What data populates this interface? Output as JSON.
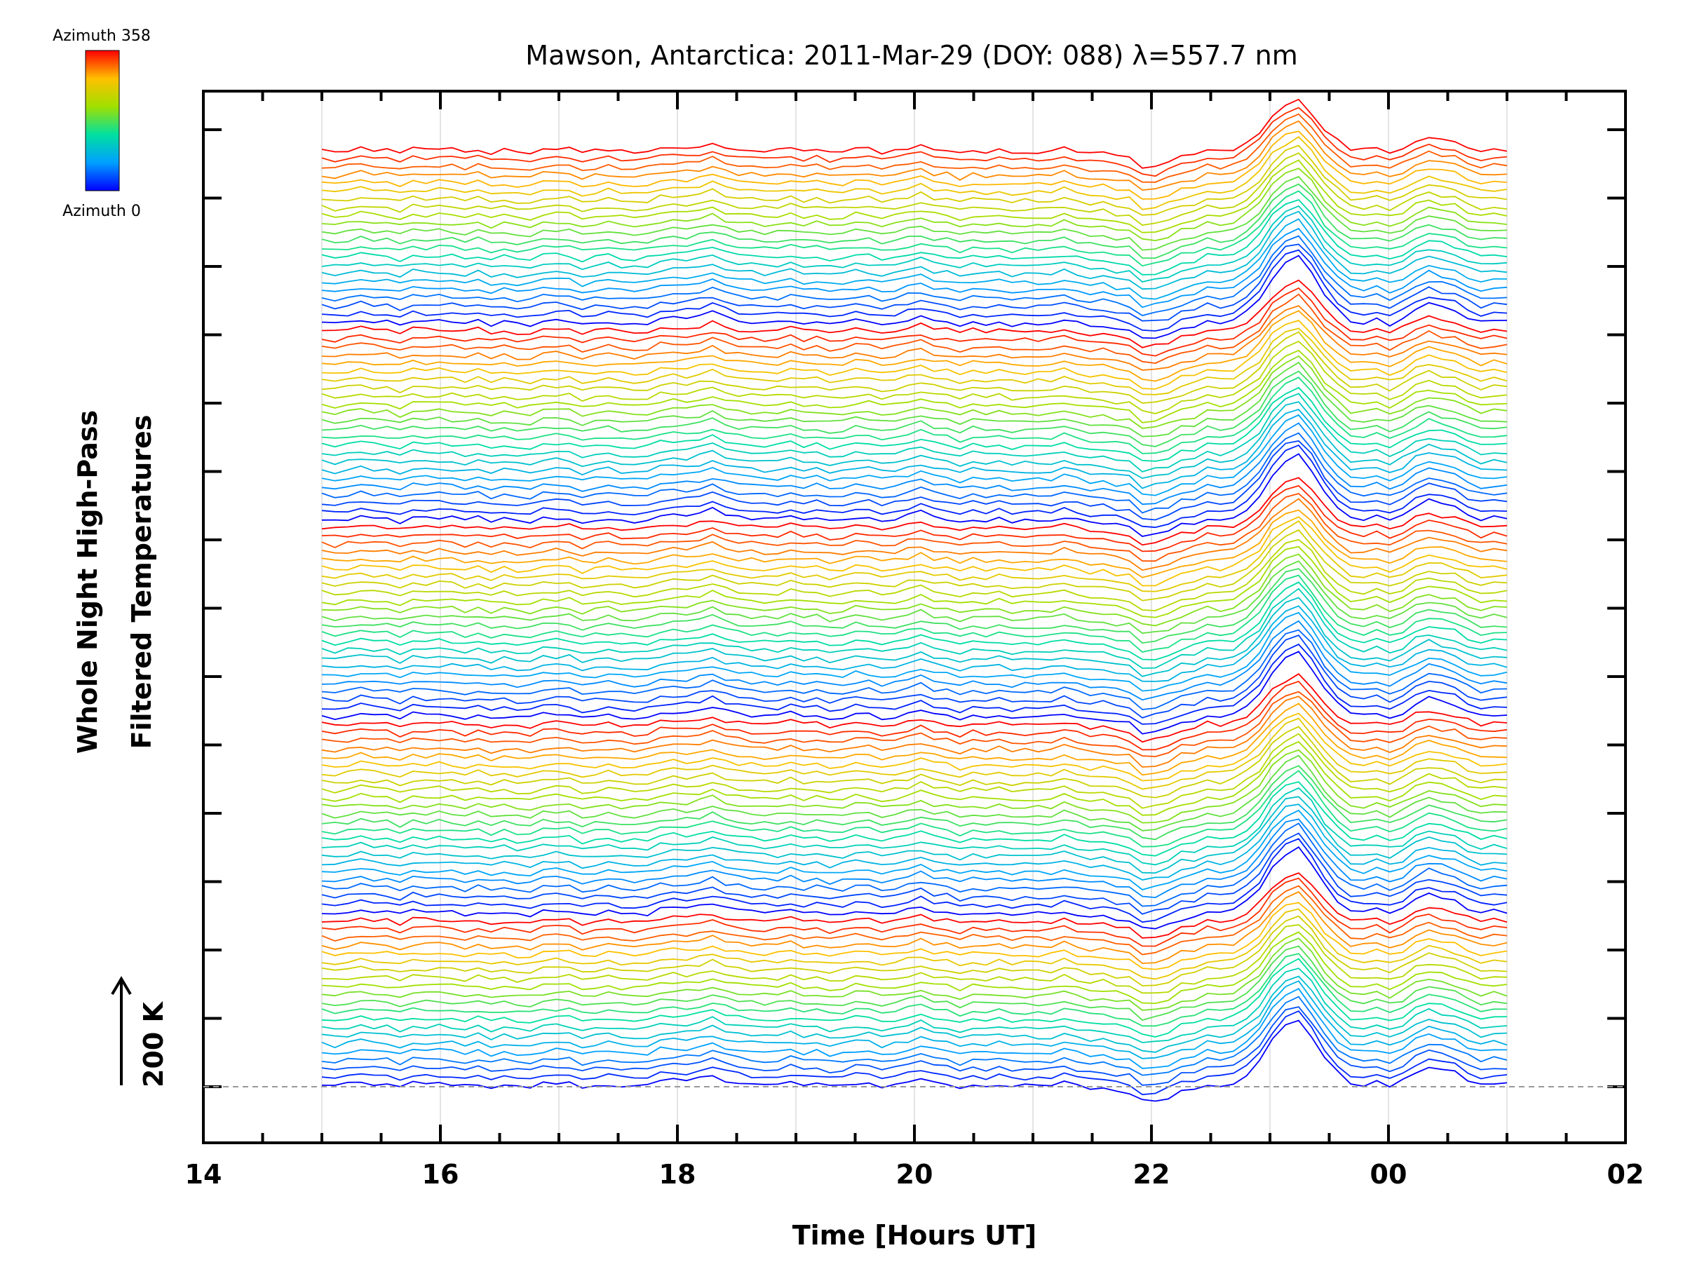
{
  "chart_data": {
    "type": "line",
    "title": "Mawson, Antarctica: 2011-Mar-29 (DOY: 088) λ=557.7 nm",
    "xlabel": "Time [Hours UT]",
    "ylabel_line1": "Whole Night High-Pass",
    "ylabel_line2": "Filtered Temperatures",
    "scale_label": "200 K",
    "x_ticks": [
      "14",
      "16",
      "18",
      "20",
      "22",
      "00",
      "02"
    ],
    "x_tick_hours": [
      14,
      16,
      18,
      20,
      22,
      24,
      26
    ],
    "xlim_hours": [
      14,
      26
    ],
    "data_range_hours": [
      15.0,
      25.0
    ],
    "colorbar": {
      "top_label": "Azimuth 358",
      "bottom_label": "Azimuth 0",
      "azimuth_range": [
        0,
        358
      ],
      "colors": [
        "#0000ff",
        "#00a0ff",
        "#00e0a0",
        "#a0e000",
        "#ffc000",
        "#ff0000"
      ]
    },
    "grid": true,
    "series_count": 115,
    "stack_groups": 5,
    "group_sizes": [
      21,
      24,
      24,
      24,
      22
    ],
    "peak_hour": 23.2,
    "secondary_peak_hour": 24.4,
    "dip_hour": 22.0
  }
}
